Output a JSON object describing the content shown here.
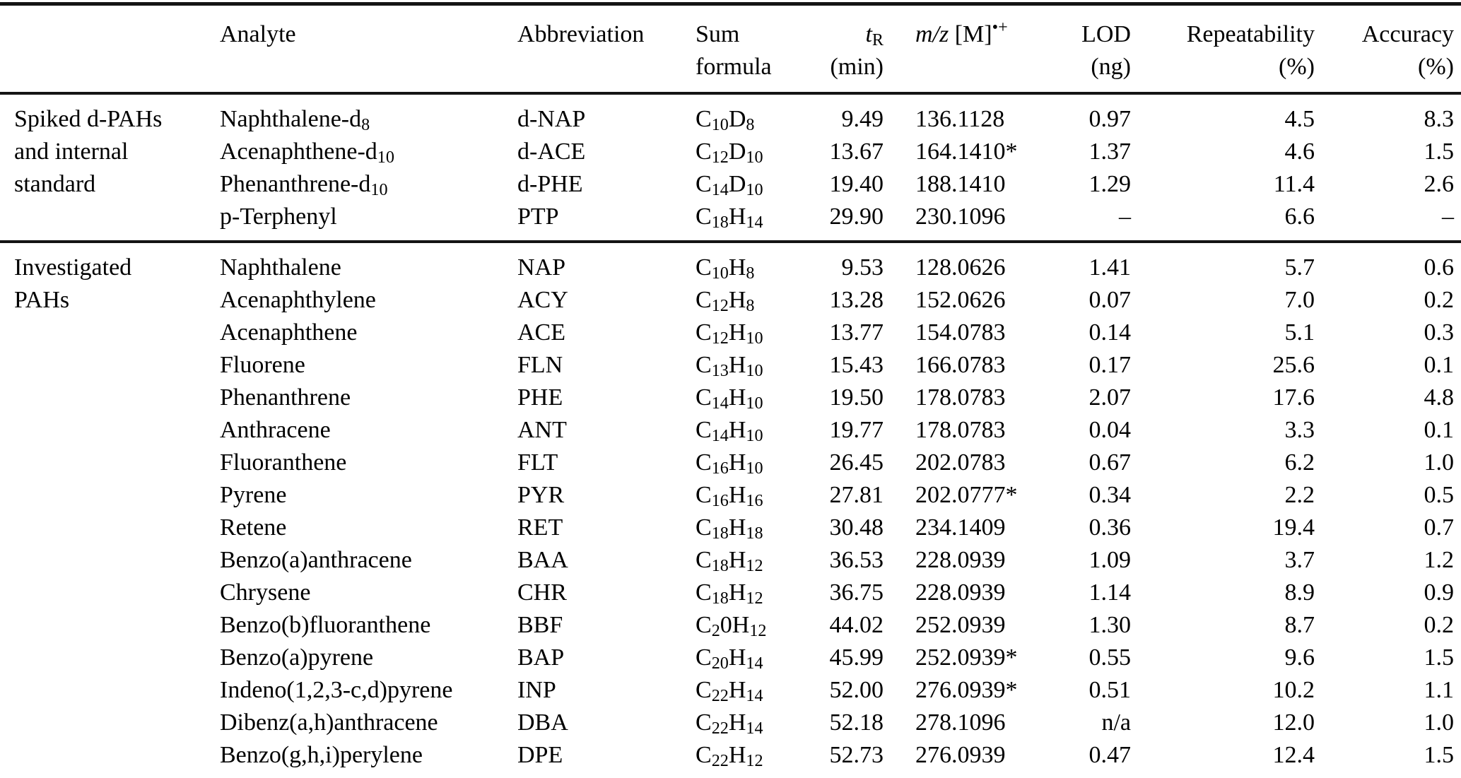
{
  "table": {
    "headers": {
      "group": "",
      "analyte": "Analyte",
      "abbreviation": "Abbreviation",
      "sum_formula_line1": "Sum",
      "sum_formula_line2": "formula",
      "tr_rich": [
        {
          "i": "t"
        },
        {
          "sub": "R"
        }
      ],
      "tr_unit": "(min)",
      "mz_rich": [
        {
          "i": "m/z"
        },
        {
          "t": " [M]"
        },
        {
          "sup": "•+"
        }
      ],
      "lod": "LOD",
      "lod_unit": "(ng)",
      "repeatability": "Repeatability",
      "repeatability_unit": "(%)",
      "accuracy": "Accuracy",
      "accuracy_unit": "(%)"
    },
    "sections": [
      {
        "group_label": "Spiked d-PAHs and internal standard",
        "rows": [
          {
            "analyte": [
              {
                "t": "Naphthalene-d"
              },
              {
                "sub": "8"
              }
            ],
            "abbr": "d-NAP",
            "formula": [
              {
                "t": "C"
              },
              {
                "sub": "10"
              },
              {
                "t": "D"
              },
              {
                "sub": "8"
              }
            ],
            "tr": "9.49",
            "mz": "136.1128",
            "lod": "0.97",
            "rep": "4.5",
            "acc": "8.3"
          },
          {
            "analyte": [
              {
                "t": "Acenaphthene-d"
              },
              {
                "sub": "10"
              }
            ],
            "abbr": "d-ACE",
            "formula": [
              {
                "t": "C"
              },
              {
                "sub": "12"
              },
              {
                "t": "D"
              },
              {
                "sub": "10"
              }
            ],
            "tr": "13.67",
            "mz": "164.1410*",
            "lod": "1.37",
            "rep": "4.6",
            "acc": "1.5"
          },
          {
            "analyte": [
              {
                "t": "Phenanthrene-d"
              },
              {
                "sub": "10"
              }
            ],
            "abbr": "d-PHE",
            "formula": [
              {
                "t": "C"
              },
              {
                "sub": "14"
              },
              {
                "t": "D"
              },
              {
                "sub": "10"
              }
            ],
            "tr": "19.40",
            "mz": "188.1410",
            "lod": "1.29",
            "rep": "11.4",
            "acc": "2.6"
          },
          {
            "analyte": [
              {
                "t": "p-Terphenyl"
              }
            ],
            "abbr": "PTP",
            "formula": [
              {
                "t": "C"
              },
              {
                "sub": "18"
              },
              {
                "t": "H"
              },
              {
                "sub": "14"
              }
            ],
            "tr": "29.90",
            "mz": "230.1096",
            "lod": "–",
            "rep": "6.6",
            "acc": "–"
          }
        ]
      },
      {
        "group_label": "Investigated PAHs",
        "rows": [
          {
            "analyte": [
              {
                "t": "Naphthalene"
              }
            ],
            "abbr": "NAP",
            "formula": [
              {
                "t": "C"
              },
              {
                "sub": "10"
              },
              {
                "t": "H"
              },
              {
                "sub": "8"
              }
            ],
            "tr": "9.53",
            "mz": "128.0626",
            "lod": "1.41",
            "rep": "5.7",
            "acc": "0.6"
          },
          {
            "analyte": [
              {
                "t": "Acenaphthylene"
              }
            ],
            "abbr": "ACY",
            "formula": [
              {
                "t": "C"
              },
              {
                "sub": "12"
              },
              {
                "t": "H"
              },
              {
                "sub": "8"
              }
            ],
            "tr": "13.28",
            "mz": "152.0626",
            "lod": "0.07",
            "rep": "7.0",
            "acc": "0.2"
          },
          {
            "analyte": [
              {
                "t": "Acenaphthene"
              }
            ],
            "abbr": "ACE",
            "formula": [
              {
                "t": "C"
              },
              {
                "sub": "12"
              },
              {
                "t": "H"
              },
              {
                "sub": "10"
              }
            ],
            "tr": "13.77",
            "mz": "154.0783",
            "lod": "0.14",
            "rep": "5.1",
            "acc": "0.3"
          },
          {
            "analyte": [
              {
                "t": "Fluorene"
              }
            ],
            "abbr": "FLN",
            "formula": [
              {
                "t": "C"
              },
              {
                "sub": "13"
              },
              {
                "t": "H"
              },
              {
                "sub": "10"
              }
            ],
            "tr": "15.43",
            "mz": "166.0783",
            "lod": "0.17",
            "rep": "25.6",
            "acc": "0.1"
          },
          {
            "analyte": [
              {
                "t": "Phenanthrene"
              }
            ],
            "abbr": "PHE",
            "formula": [
              {
                "t": "C"
              },
              {
                "sub": "14"
              },
              {
                "t": "H"
              },
              {
                "sub": "10"
              }
            ],
            "tr": "19.50",
            "mz": "178.0783",
            "lod": "2.07",
            "rep": "17.6",
            "acc": "4.8"
          },
          {
            "analyte": [
              {
                "t": "Anthracene"
              }
            ],
            "abbr": "ANT",
            "formula": [
              {
                "t": "C"
              },
              {
                "sub": "14"
              },
              {
                "t": "H"
              },
              {
                "sub": "10"
              }
            ],
            "tr": "19.77",
            "mz": "178.0783",
            "lod": "0.04",
            "rep": "3.3",
            "acc": "0.1"
          },
          {
            "analyte": [
              {
                "t": "Fluoranthene"
              }
            ],
            "abbr": "FLT",
            "formula": [
              {
                "t": "C"
              },
              {
                "sub": "16"
              },
              {
                "t": "H"
              },
              {
                "sub": "10"
              }
            ],
            "tr": "26.45",
            "mz": "202.0783",
            "lod": "0.67",
            "rep": "6.2",
            "acc": "1.0"
          },
          {
            "analyte": [
              {
                "t": "Pyrene"
              }
            ],
            "abbr": "PYR",
            "formula": [
              {
                "t": "C"
              },
              {
                "sub": "16"
              },
              {
                "t": "H"
              },
              {
                "sub": "16"
              }
            ],
            "tr": "27.81",
            "mz": "202.0777*",
            "lod": "0.34",
            "rep": "2.2",
            "acc": "0.5"
          },
          {
            "analyte": [
              {
                "t": "Retene"
              }
            ],
            "abbr": "RET",
            "formula": [
              {
                "t": "C"
              },
              {
                "sub": "18"
              },
              {
                "t": "H"
              },
              {
                "sub": "18"
              }
            ],
            "tr": "30.48",
            "mz": "234.1409",
            "lod": "0.36",
            "rep": "19.4",
            "acc": "0.7"
          },
          {
            "analyte": [
              {
                "t": "Benzo(a)anthracene"
              }
            ],
            "abbr": "BAA",
            "formula": [
              {
                "t": "C"
              },
              {
                "sub": "18"
              },
              {
                "t": "H"
              },
              {
                "sub": "12"
              }
            ],
            "tr": "36.53",
            "mz": "228.0939",
            "lod": "1.09",
            "rep": "3.7",
            "acc": "1.2"
          },
          {
            "analyte": [
              {
                "t": "Chrysene"
              }
            ],
            "abbr": "CHR",
            "formula": [
              {
                "t": "C"
              },
              {
                "sub": "18"
              },
              {
                "t": "H"
              },
              {
                "sub": "12"
              }
            ],
            "tr": "36.75",
            "mz": "228.0939",
            "lod": "1.14",
            "rep": "8.9",
            "acc": "0.9"
          },
          {
            "analyte": [
              {
                "t": "Benzo(b)fluoranthene"
              }
            ],
            "abbr": "BBF",
            "formula": [
              {
                "t": "C"
              },
              {
                "sub": "2"
              },
              {
                "t": "0H"
              },
              {
                "sub": "12"
              }
            ],
            "tr": "44.02",
            "mz": "252.0939",
            "lod": "1.30",
            "rep": "8.7",
            "acc": "0.2"
          },
          {
            "analyte": [
              {
                "t": "Benzo(a)pyrene"
              }
            ],
            "abbr": "BAP",
            "formula": [
              {
                "t": "C"
              },
              {
                "sub": "20"
              },
              {
                "t": "H"
              },
              {
                "sub": "14"
              }
            ],
            "tr": "45.99",
            "mz": "252.0939*",
            "lod": "0.55",
            "rep": "9.6",
            "acc": "1.5"
          },
          {
            "analyte": [
              {
                "t": "Indeno(1,2,3-c,d)pyrene"
              }
            ],
            "abbr": "INP",
            "formula": [
              {
                "t": "C"
              },
              {
                "sub": "22"
              },
              {
                "t": "H"
              },
              {
                "sub": "14"
              }
            ],
            "tr": "52.00",
            "mz": "276.0939*",
            "lod": "0.51",
            "rep": "10.2",
            "acc": "1.1"
          },
          {
            "analyte": [
              {
                "t": "Dibenz(a,h)anthracene"
              }
            ],
            "abbr": "DBA",
            "formula": [
              {
                "t": "C"
              },
              {
                "sub": "22"
              },
              {
                "t": "H"
              },
              {
                "sub": "14"
              }
            ],
            "tr": "52.18",
            "mz": "278.1096",
            "lod": "n/a",
            "rep": "12.0",
            "acc": "1.0"
          },
          {
            "analyte": [
              {
                "t": "Benzo(g,h,i)perylene"
              }
            ],
            "abbr": "DPE",
            "formula": [
              {
                "t": "C"
              },
              {
                "sub": "22"
              },
              {
                "t": "H"
              },
              {
                "sub": "12"
              }
            ],
            "tr": "52.73",
            "mz": "276.0939",
            "lod": "0.47",
            "rep": "12.4",
            "acc": "1.5"
          }
        ]
      }
    ]
  }
}
